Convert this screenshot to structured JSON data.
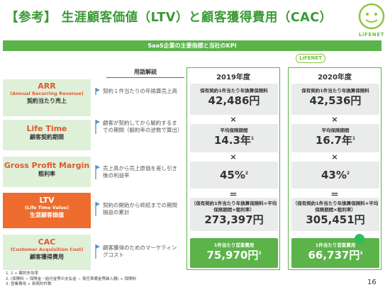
{
  "title": "【参考】 生涯顧客価値（LTV）と顧客獲得費用（CAC）",
  "logo_text": "LiFENET",
  "banner": "SaaS企業の主要指標と当社のKPI",
  "glossary_header": "用語解説",
  "years": [
    "2019年度",
    "2020年度"
  ],
  "rows": [
    {
      "main": "ARR",
      "sub": "(Annual Recurring Revenue)",
      "jp": "契約当たり売上",
      "desc": "契約１件当たりの年換算売上高"
    },
    {
      "main": "Life Time",
      "sub": "",
      "jp": "顧客契約期間",
      "desc": "顧客が契約してから解約するまでの期間（解約率の逆数で算出）"
    },
    {
      "main": "Gross Profit Margin",
      "sub": "",
      "jp": "粗利率",
      "desc": "売上高から売上原価を差し引き後の利益率"
    },
    {
      "main": "LTV",
      "sub": "(Life Time Value)",
      "jp": "生涯顧客価値",
      "desc": "契約の開始から終結までの期間損益の累計"
    },
    {
      "main": "CAC",
      "sub": "(Customer Acquisition Cost)",
      "jp": "顧客獲得費用",
      "desc": "顧客獲得のためのマーケティングコスト"
    }
  ],
  "y2019": {
    "arr_label": "保有契約1件当たり年換算保険料",
    "arr_value": "42,486円",
    "lt_label": "平均保険期間",
    "lt_value": "14.3年",
    "lt_sup": "1",
    "gpm_value": "45%",
    "gpm_sup": "2",
    "ltv_label": "（保有契約1件当たり年換算保険料×平均保険期間×粗利率）",
    "ltv_value": "273,397円",
    "cac_label": "1件当たり営業費用",
    "cac_value": "75,970円",
    "cac_sup": "3"
  },
  "y2020": {
    "arr_label": "保有契約1件当たり年換算保険料",
    "arr_value": "42,536円",
    "lt_label": "平均保険期間",
    "lt_value": "16.7年",
    "lt_sup": "1",
    "gpm_value": "43%",
    "gpm_sup": "2",
    "ltv_label": "（保有契約1件当たり年換算保険料×平均保険期間×粗利率）",
    "ltv_value": "305,451円",
    "cac_label": "1件当たり営業費用",
    "cac_value": "66,737円",
    "cac_sup": "3"
  },
  "ops": {
    "times": "×",
    "equals": "＝"
  },
  "footnotes": [
    "1. 1 ÷ 解約失効率",
    "2. (保険料 − 保険金・給付金等の支払金 − 責任準備金等繰入額) ÷ 保険料",
    "3. 営業費用 ÷ 新契約件数"
  ],
  "page_number": "16",
  "colors": {
    "green": "#5bb34a",
    "orange": "#ed6c2e",
    "light_green": "#dff0d8",
    "red_text": "#e4572e"
  }
}
